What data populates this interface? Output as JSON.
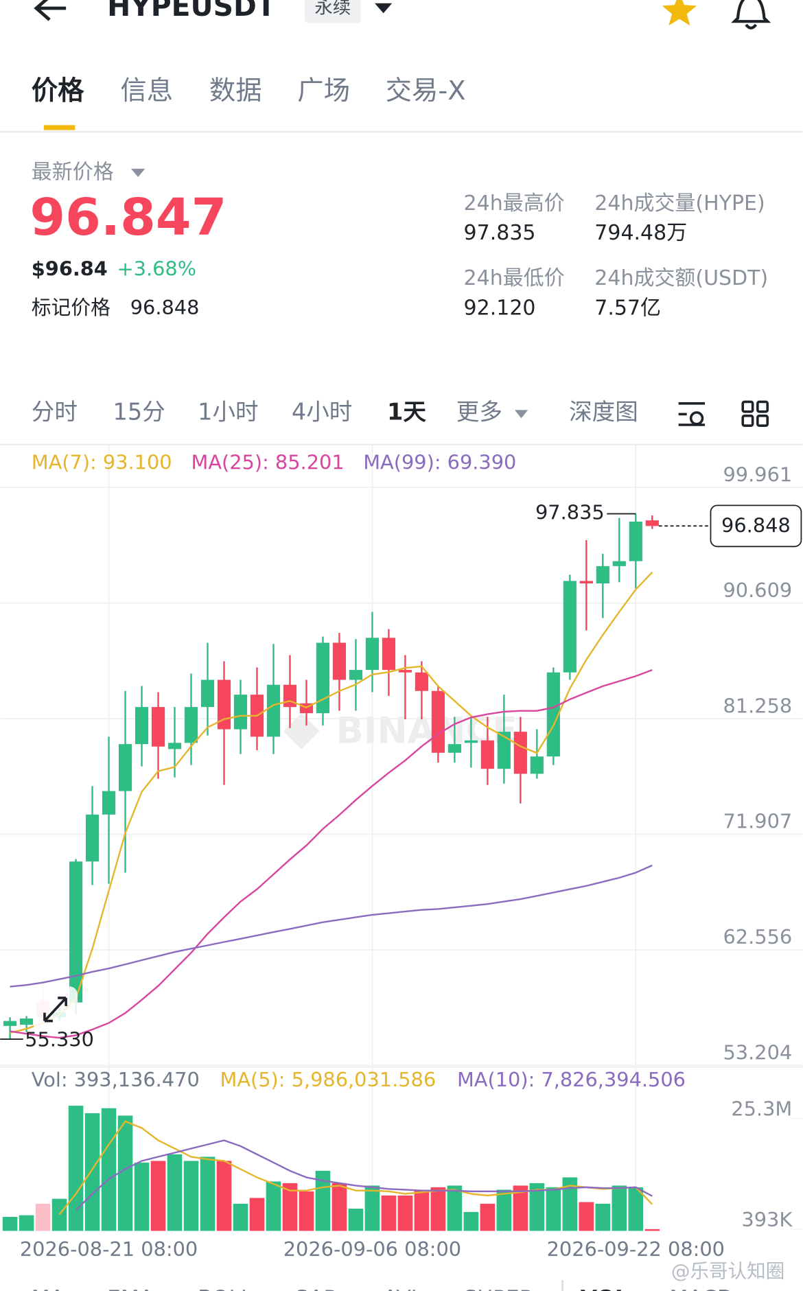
{
  "header": {
    "title": "HYPEUSDT",
    "badge": "永续"
  },
  "tabs": [
    "价格",
    "信息",
    "数据",
    "广场",
    "交易-X"
  ],
  "price_panel": {
    "label": "最新价格",
    "last_price": "96.847",
    "usd_price": "$96.84",
    "change": "+3.68%",
    "mark_label": "标记价格",
    "mark_price": "96.848",
    "stats": [
      {
        "label": "24h最高价",
        "value": "97.835"
      },
      {
        "label": "24h成交量(HYPE)",
        "value": "794.48万"
      },
      {
        "label": "24h最低价",
        "value": "92.120"
      },
      {
        "label": "24h成交额(USDT)",
        "value": "7.57亿"
      }
    ]
  },
  "intervals": [
    "分时",
    "15分",
    "1小时",
    "4小时",
    "1天",
    "更多",
    "深度图"
  ],
  "watermark": "BINANCE",
  "indicator_tabs": [
    "MA",
    "EMA",
    "BOLL",
    "SAR",
    "AVL",
    "SUPER",
    "VOL",
    "MACD"
  ],
  "credit": "@乐哥认知圈",
  "chart_data": [
    {
      "type": "candlestick",
      "up_color": "#2ebd85",
      "down_color": "#f6465d",
      "open": [
        56.4,
        56.5,
        58.4,
        57.1,
        58.3,
        69.7,
        73.5,
        75.4,
        79.2,
        82.2,
        78.8,
        79.3,
        82.2,
        84.4,
        80.4,
        83.2,
        79.8,
        84.0,
        82.5,
        81.7,
        87.4,
        84.4,
        85.2,
        87.8,
        85.2,
        85.0,
        83.5,
        78.5,
        79.3,
        79.5,
        77.2,
        80.2,
        76.8,
        78.2,
        85.0,
        92.4,
        92.2,
        93.6,
        94.0,
        97.3
      ],
      "high": [
        57.1,
        57.2,
        59.5,
        57.9,
        69.9,
        75.8,
        79.8,
        83.5,
        83.9,
        83.4,
        82.2,
        84.9,
        87.4,
        85.9,
        84.4,
        85.4,
        87.3,
        86.4,
        84.4,
        87.9,
        88.2,
        87.7,
        89.9,
        88.5,
        86.4,
        85.9,
        83.9,
        81.4,
        81.4,
        81.4,
        83.2,
        81.4,
        80.4,
        85.4,
        92.9,
        95.7,
        94.6,
        97.5,
        97.835,
        97.7
      ],
      "low": [
        55.33,
        55.9,
        56.7,
        56.8,
        57.3,
        67.8,
        67.9,
        68.8,
        77.4,
        76.4,
        76.5,
        77.5,
        79.9,
        75.9,
        78.4,
        78.7,
        78.4,
        80.5,
        80.7,
        80.7,
        81.9,
        81.9,
        83.4,
        83.1,
        81.2,
        81.2,
        77.7,
        77.7,
        77.3,
        75.9,
        76.0,
        74.4,
        76.4,
        77.5,
        84.4,
        88.4,
        89.4,
        92.3,
        91.8,
        96.6
      ],
      "close": [
        56.8,
        57.0,
        57.1,
        57.5,
        69.7,
        73.5,
        75.4,
        79.2,
        82.2,
        79.0,
        79.3,
        82.2,
        84.4,
        80.4,
        83.2,
        79.8,
        84.0,
        82.2,
        81.7,
        87.4,
        84.4,
        85.2,
        87.8,
        85.2,
        85.0,
        83.5,
        78.5,
        79.2,
        79.5,
        77.2,
        80.2,
        76.8,
        78.2,
        85.0,
        92.4,
        92.2,
        93.6,
        94.0,
        97.2,
        96.847
      ],
      "series": [
        {
          "name": "MA(7): 93.100",
          "color": "#e5b52b",
          "values": [
            55.84,
            56.17,
            56.64,
            57.31,
            58.64,
            62.65,
            67.33,
            72.0,
            75.34,
            77.01,
            77.35,
            79.02,
            80.55,
            81.22,
            81.49,
            81.49,
            82.36,
            82.69,
            82.16,
            82.82,
            83.49,
            84.03,
            84.83,
            85.03,
            85.36,
            85.49,
            83.89,
            82.69,
            81.49,
            80.55,
            79.82,
            79.02,
            78.48,
            80.69,
            83.69,
            86.03,
            88.03,
            89.9,
            91.71,
            93.1
          ]
        },
        {
          "name": "MA(25): 85.201",
          "color": "#d9449e",
          "values": [
            55.97,
            55.77,
            55.57,
            55.44,
            55.64,
            56.11,
            56.64,
            57.44,
            58.51,
            59.64,
            60.98,
            62.32,
            63.85,
            65.19,
            66.46,
            67.46,
            68.66,
            69.87,
            71.0,
            72.34,
            73.47,
            74.68,
            75.81,
            76.88,
            77.88,
            79.02,
            80.02,
            80.82,
            81.36,
            81.62,
            81.82,
            81.89,
            81.89,
            82.16,
            82.82,
            83.36,
            83.89,
            84.29,
            84.7,
            85.201
          ]
        },
        {
          "name": "MA(99): 69.390",
          "color": "#8b6bbf",
          "values": [
            59.58,
            59.71,
            59.91,
            60.18,
            60.45,
            60.78,
            61.05,
            61.38,
            61.72,
            62.05,
            62.38,
            62.65,
            62.92,
            63.19,
            63.45,
            63.72,
            63.99,
            64.25,
            64.52,
            64.79,
            64.99,
            65.19,
            65.39,
            65.52,
            65.66,
            65.79,
            65.86,
            65.99,
            66.12,
            66.26,
            66.46,
            66.66,
            66.92,
            67.19,
            67.46,
            67.73,
            68.06,
            68.39,
            68.8,
            69.39
          ]
        }
      ],
      "ylim": [
        53.14,
        103.43
      ],
      "yticks": [
        99.961,
        90.609,
        81.258,
        71.907,
        62.556,
        53.204
      ],
      "grid": true,
      "high_marker": 97.835,
      "low_marker": {
        "value": 55.33,
        "label": "55.330"
      },
      "price_line": 96.848
    },
    {
      "type": "bar",
      "name": "Vol: 393,136.470",
      "categories": [
        null,
        null,
        null,
        null,
        null,
        null,
        "2026-08-21 08:00",
        null,
        null,
        null,
        null,
        null,
        null,
        null,
        null,
        null,
        null,
        null,
        null,
        null,
        null,
        null,
        "2026-09-06 08:00",
        null,
        null,
        null,
        null,
        null,
        null,
        null,
        null,
        null,
        null,
        null,
        null,
        null,
        null,
        null,
        "2026-09-22 08:00",
        null
      ],
      "values": [
        3150000,
        3520000,
        6110000,
        7220000,
        28150000,
        26480000,
        27590000,
        25930000,
        15370000,
        15740000,
        17220000,
        15740000,
        16670000,
        15740000,
        6110000,
        7410000,
        11110000,
        10740000,
        8890000,
        13520000,
        10740000,
        5000000,
        10190000,
        7960000,
        7960000,
        9260000,
        9810000,
        10190000,
        4260000,
        6110000,
        9260000,
        10190000,
        10740000,
        9810000,
        12040000,
        6480000,
        6110000,
        10190000,
        9810000,
        393136.47
      ],
      "series": [
        {
          "name": "MA(5): 5,986,031.586",
          "color": "#e5b52b",
          "values": [
            null,
            null,
            null,
            3700000,
            8330000,
            13890000,
            19440000,
            24630000,
            23150000,
            20370000,
            18520000,
            16670000,
            16110000,
            15740000,
            13890000,
            12040000,
            10560000,
            9070000,
            9070000,
            9810000,
            10190000,
            9070000,
            9070000,
            8890000,
            8330000,
            8700000,
            9070000,
            9260000,
            8330000,
            7960000,
            8330000,
            8700000,
            9260000,
            9260000,
            10190000,
            9810000,
            9440000,
            9630000,
            9810000,
            5986031.586
          ]
        },
        {
          "name": "MA(10): 7,826,394.506",
          "color": "#8b6bbf",
          "values": [
            null,
            null,
            null,
            null,
            4630000,
            8330000,
            11670000,
            13890000,
            15740000,
            16670000,
            17590000,
            18520000,
            19440000,
            20370000,
            19070000,
            17220000,
            15370000,
            13520000,
            12040000,
            11300000,
            10740000,
            10190000,
            9810000,
            9440000,
            9260000,
            9070000,
            9070000,
            9070000,
            8890000,
            8890000,
            8890000,
            8890000,
            9070000,
            9260000,
            9630000,
            9810000,
            9630000,
            9630000,
            9810000,
            7826394.506
          ]
        }
      ],
      "ylim": [
        0,
        30000000
      ],
      "yticks": [
        {
          "value": 25300000,
          "label": "25.3M"
        },
        {
          "value": 393000,
          "label": "393K"
        }
      ]
    }
  ]
}
